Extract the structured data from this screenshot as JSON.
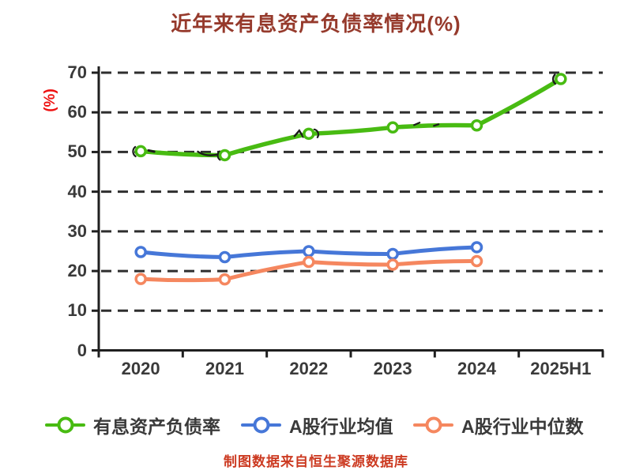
{
  "title": "近年来有息资产负债率情况(%)",
  "footer": "制图数据来自恒生聚源数据库",
  "chart_data": {
    "type": "line",
    "categories": [
      "2020",
      "2021",
      "2022",
      "2023",
      "2024",
      "2025H1"
    ],
    "series": [
      {
        "name": "有息资产负债率",
        "color": "#48bb12",
        "marker": "circle-white-fill",
        "values": [
          50.2,
          49.2,
          54.6,
          56.2,
          56.7,
          68.4
        ]
      },
      {
        "name": "A股行业均值",
        "color": "#4677d8",
        "marker": "circle-white-fill",
        "values": [
          24.8,
          23.5,
          25.0,
          24.3,
          26.0,
          null
        ]
      },
      {
        "name": "A股行业中位数",
        "color": "#f5875f",
        "marker": "circle-white-fill",
        "values": [
          18.0,
          17.9,
          22.3,
          21.6,
          22.5,
          null
        ]
      }
    ],
    "ylabel": "(%)",
    "xlabel": "",
    "ylim": [
      0,
      70
    ],
    "ytick_step": 10,
    "yticks": [
      "0",
      "10",
      "20",
      "30",
      "40",
      "50",
      "60",
      "70"
    ],
    "grid": "horizontal-dashed",
    "legend_position": "bottom",
    "style": "xkcd-sketch"
  },
  "colors": {
    "background": "#ffffff",
    "title": "#963a2c",
    "footer": "#cc3a21",
    "ylabel": "#ee1111",
    "tick_text": "#3a3a3a",
    "grid": "#2e2e2e",
    "axis": "#1f1f1f",
    "artifact": "#1b1b1b"
  }
}
